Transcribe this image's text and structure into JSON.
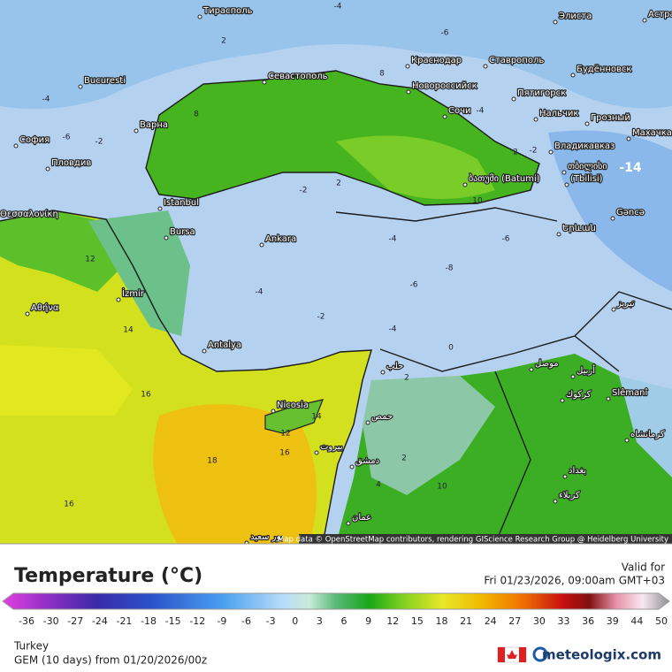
{
  "map": {
    "cities": [
      "Тирасполь",
      "Элиста",
      "Астра",
      "Bucuresti",
      "Севастополь",
      "Краснодар",
      "Ставрополь",
      "Будённовск",
      "Новороссийск",
      "Пятигорск",
      "Сочи",
      "Нальчик",
      "Грозный",
      "Махачка",
      "София",
      "Варна",
      "Пловдив",
      "Владикавказ",
      "ბათუმი (Batumi)",
      "თბილისი",
      "(Tbilisi)",
      "Istanbul",
      "Θεσσαλονίκη",
      "Gəncə",
      "Bursa",
      "Ankara",
      "Երևան",
      "İzmir",
      "Αθήνα",
      "تبريز",
      "Antalya",
      "حلب",
      "موصل",
      "أربيل",
      "كركوك",
      "Slêmanî",
      "Nicosia",
      "حمص",
      "بيروت",
      "كرمانشاه",
      "دمشق",
      "بغداد",
      "كربلاء",
      "عمان",
      "بور سعيد"
    ],
    "contour_labels": [
      -4,
      -6,
      2,
      -4,
      -6,
      -2,
      8,
      8,
      -4,
      10,
      -2,
      2,
      -4,
      -6,
      -8,
      -6,
      -4,
      -2,
      -4,
      0,
      12,
      14,
      16,
      14,
      12,
      16,
      18,
      16,
      2,
      2,
      10,
      4,
      -14,
      -2,
      2
    ],
    "attribution": "Map data © OpenStreetMap contributors, rendering GIScience Research Group @ Heidelberg University"
  },
  "legend": {
    "title": "Temperature (°C)",
    "valid_label": "Valid for",
    "valid_time": "Fri 01/23/2026, 09:00am GMT+03",
    "ticks": [
      -36,
      -30,
      -27,
      -24,
      -21,
      -18,
      -15,
      -12,
      -9,
      -6,
      -3,
      0,
      3,
      6,
      9,
      12,
      15,
      18,
      21,
      24,
      27,
      30,
      33,
      36,
      39,
      44,
      50
    ],
    "region": "Turkey",
    "model": "GEM (10 days) from 01/20/2026/00z",
    "brand": "meteologix.com"
  }
}
